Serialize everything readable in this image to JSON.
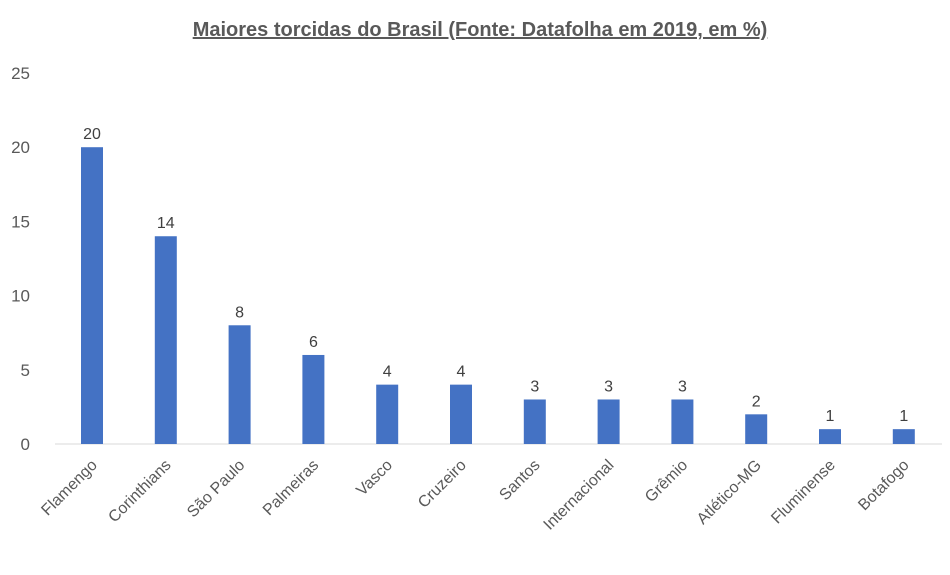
{
  "chart_data": {
    "type": "bar",
    "title": "Maiores torcidas do Brasil (Fonte: Datafolha em 2019, em %)",
    "xlabel": "",
    "ylabel": "",
    "ylim": [
      0,
      25
    ],
    "yticks": [
      0,
      5,
      10,
      15,
      20,
      25
    ],
    "grid": false,
    "categories": [
      "Flamengo",
      "Corinthians",
      "São Paulo",
      "Palmeiras",
      "Vasco",
      "Cruzeiro",
      "Santos",
      "Internacional",
      "Grêmio",
      "Atlético-MG",
      "Fluminense",
      "Botafogo"
    ],
    "values": [
      20,
      14,
      8,
      6,
      4,
      4,
      3,
      3,
      3,
      2,
      1,
      1
    ],
    "bar_color": "#4472c4"
  }
}
